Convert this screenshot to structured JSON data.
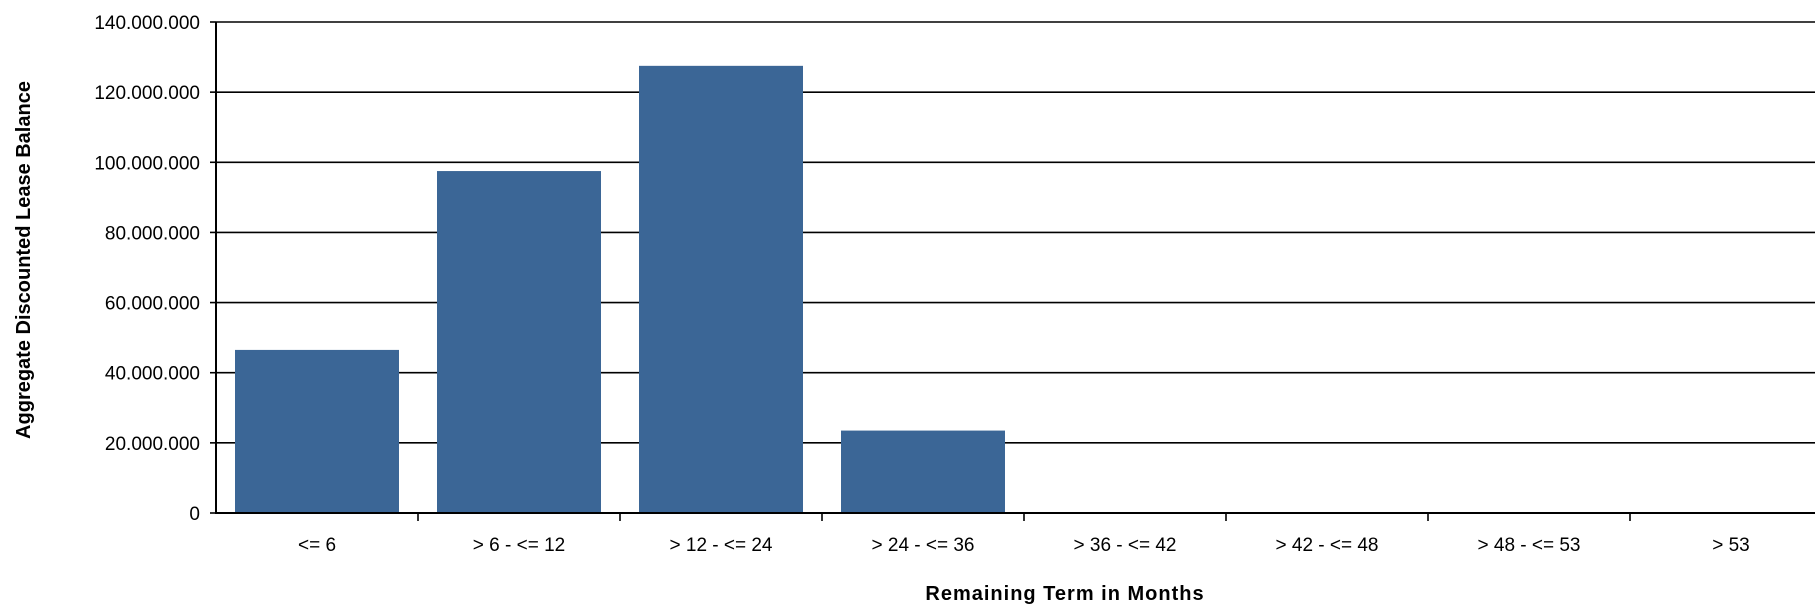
{
  "chart_data": {
    "type": "bar",
    "title": "",
    "xlabel": "Remaining Term in Months",
    "ylabel": "Aggregate Discounted Lease Balance",
    "categories": [
      "<= 6",
      "> 6 - <= 12",
      "> 12 - <= 24",
      "> 24 - <= 36",
      "> 36 - <= 42",
      "> 42 - <= 48",
      "> 48 - <= 53",
      "> 53"
    ],
    "values": [
      46500000,
      97500000,
      127500000,
      23500000,
      0,
      0,
      0,
      0
    ],
    "ylim": [
      0,
      140000000
    ],
    "yticks": [
      0,
      20000000,
      40000000,
      60000000,
      80000000,
      100000000,
      120000000,
      140000000
    ],
    "ytick_labels": [
      "0",
      "20.000.000",
      "40.000.000",
      "60.000.000",
      "80.000.000",
      "100.000.000",
      "120.000.000",
      "140.000.000"
    ],
    "grid": true,
    "legend": "none",
    "bar_color": "#3b6696"
  }
}
